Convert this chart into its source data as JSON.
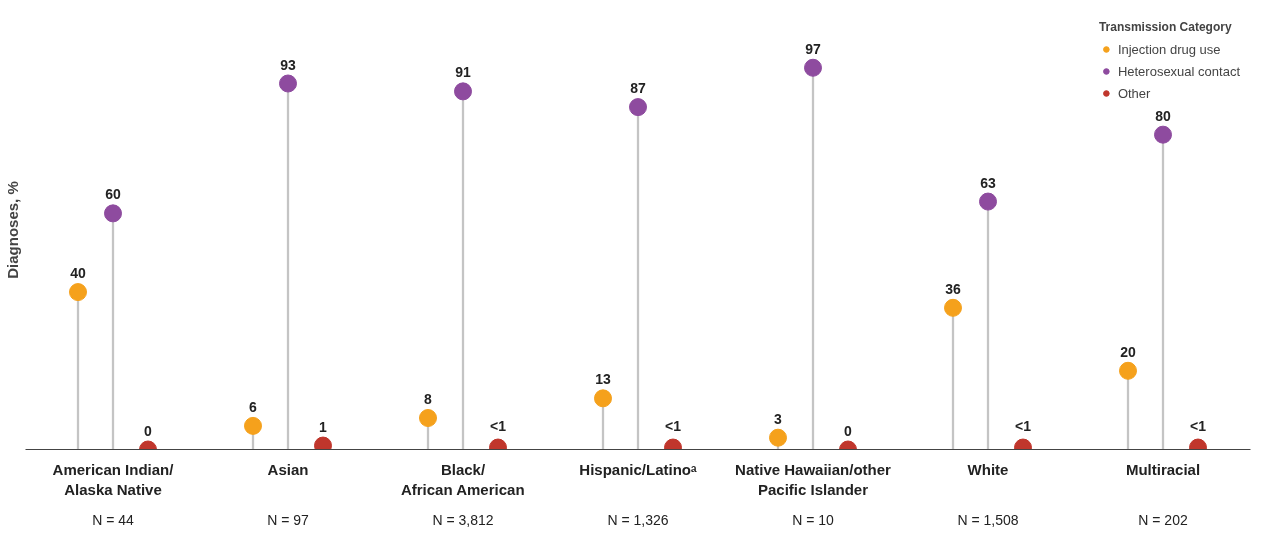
{
  "chart_data": {
    "type": "lollipop",
    "ylabel": "Diagnoses, %",
    "legend_title": "Transmission Category",
    "legend": "top right",
    "data_labels": true,
    "marker": "circle",
    "categories": [
      "American Indian/\nAlaska Native",
      "Asian",
      "Black/\nAfrican American",
      "Hispanic/Latinoᵃ",
      "Native Hawaiian/other\nPacific Islander",
      "White",
      "Multiracial"
    ],
    "series": [
      {
        "name": "Injection drug use",
        "color": "#f5a11c",
        "values": [
          40,
          6,
          8,
          13,
          3,
          36,
          20
        ]
      },
      {
        "name": "Heterosexual contact",
        "color": "#8e4b9f",
        "values": [
          60,
          93,
          91,
          87,
          97,
          63,
          80
        ]
      },
      {
        "name": "Other",
        "color": "#c0362c",
        "values": [
          0,
          1,
          0.5,
          0.5,
          0,
          0.5,
          0.5
        ],
        "value_labels": [
          "0",
          "1",
          "<1",
          "<1",
          "0",
          "<1",
          "<1"
        ]
      }
    ],
    "annotations": [
      "N = 44",
      "N = 97",
      "N = 3,812",
      "N = 1,326",
      "N = 10",
      "N = 1,508",
      "N = 202"
    ]
  }
}
